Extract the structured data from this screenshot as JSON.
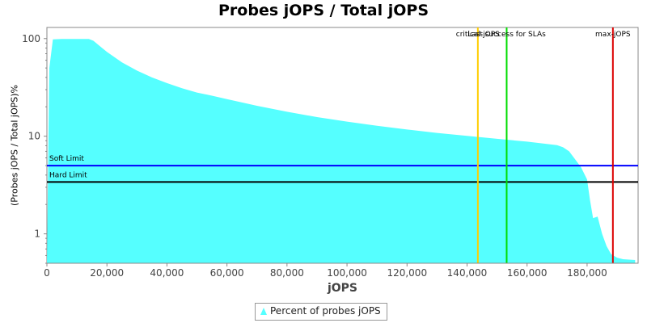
{
  "chart_data": {
    "type": "area",
    "title": "Probes jOPS / Total jOPS",
    "xlabel": "jOPS",
    "ylabel": "(Probes jOPS / Total jOPS)%",
    "yscale": "log",
    "xlim": [
      0,
      197000
    ],
    "ylim": [
      0.5,
      130
    ],
    "x_ticks": [
      0,
      20000,
      40000,
      60000,
      80000,
      100000,
      120000,
      140000,
      160000,
      180000
    ],
    "x_tick_labels": [
      "0",
      "20,000",
      "40,000",
      "60,000",
      "80,000",
      "100,000",
      "120,000",
      "140,000",
      "160,000",
      "180,000"
    ],
    "y_ticks": [
      1,
      10,
      100
    ],
    "y_tick_labels": [
      "1",
      "10",
      "100"
    ],
    "grid": false,
    "legend_position": "bottom",
    "series": [
      {
        "name": "Percent of probes jOPS",
        "color": "#55ffff",
        "x": [
          0,
          800,
          2000,
          5000,
          10000,
          14000,
          15500,
          20000,
          25000,
          30000,
          35000,
          40000,
          45000,
          50000,
          55000,
          60000,
          70000,
          80000,
          90000,
          100000,
          110000,
          120000,
          130000,
          140000,
          150000,
          160000,
          170000,
          172000,
          174000,
          176000,
          178000,
          180000,
          181000,
          182000,
          183500,
          185000,
          186500,
          188000,
          190000,
          192000,
          196000
        ],
        "y": [
          0.5,
          50,
          98,
          99,
          99,
          99,
          95,
          73,
          57,
          47,
          40,
          35,
          31,
          28,
          26,
          24,
          20.5,
          17.8,
          15.7,
          14.1,
          12.8,
          11.7,
          10.8,
          10.1,
          9.4,
          8.8,
          8.1,
          7.7,
          7.0,
          5.8,
          4.8,
          3.6,
          2.2,
          1.45,
          1.5,
          1.0,
          0.75,
          0.62,
          0.57,
          0.55,
          0.54
        ]
      }
    ],
    "reference_lines": [
      {
        "orientation": "horizontal",
        "label": "Soft Limit",
        "value": 5,
        "color": "#0000ff"
      },
      {
        "orientation": "horizontal",
        "label": "Hard Limit",
        "value": 3.4,
        "color": "#000000"
      },
      {
        "orientation": "vertical",
        "label": "critical-jOPS",
        "value": 143600,
        "color": "#ffcc00"
      },
      {
        "orientation": "vertical",
        "label": "Last success for SLAs",
        "value": 153200,
        "color": "#00dd00"
      },
      {
        "orientation": "vertical",
        "label": "max-jOPS",
        "value": 188600,
        "color": "#dd0000"
      }
    ]
  }
}
